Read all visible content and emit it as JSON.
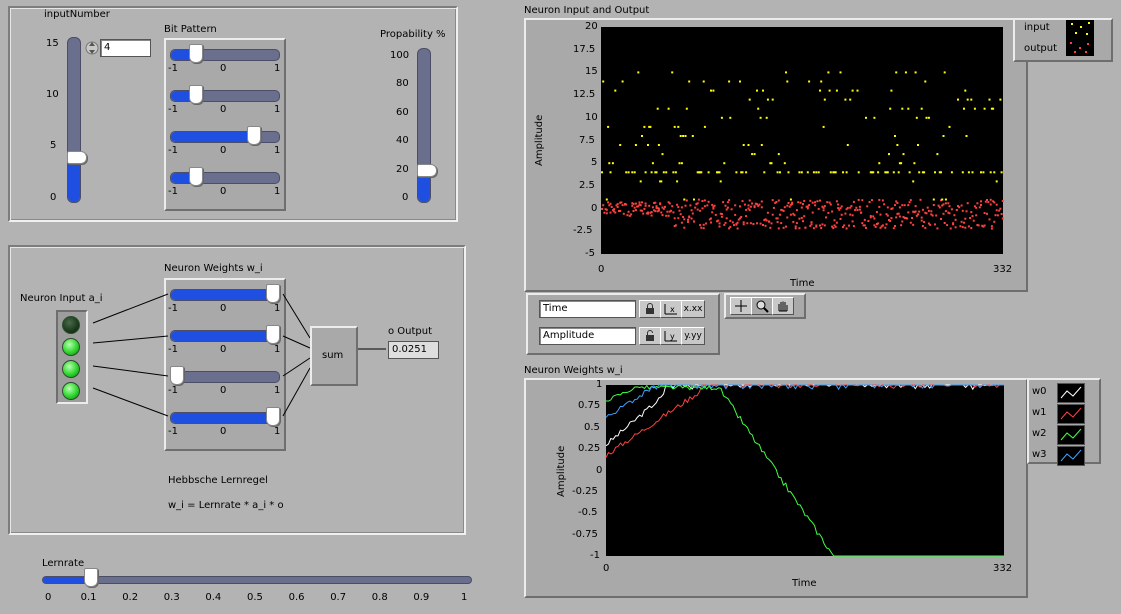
{
  "input_number": {
    "label": "inputNumber",
    "value": "4",
    "slider_value": 4,
    "scale": [
      "15",
      "10",
      "5",
      "0"
    ]
  },
  "bit_pattern": {
    "label": "Bit Pattern",
    "values": [
      -0.6,
      -0.6,
      0.6,
      -0.6
    ],
    "ticks": [
      "-1",
      "0",
      "1"
    ]
  },
  "probability": {
    "label": "Propability %",
    "value": 20,
    "scale": [
      "100",
      "80",
      "60",
      "40",
      "20",
      "0"
    ]
  },
  "network": {
    "neuron_input_label": "Neuron Input a_i",
    "leds": [
      false,
      true,
      true,
      true
    ],
    "weights_label": "Neuron Weights w_i",
    "weights": [
      1,
      1,
      -1,
      1
    ],
    "ticks": [
      "-1",
      "0",
      "1"
    ],
    "sum_label": "sum",
    "output_label": "o Output",
    "output_value": "0.0251",
    "rule_title": "Hebbsche Lernregel",
    "rule_formula": "w_i = Lernrate * a_i * o"
  },
  "lernrate": {
    "label": "Lernrate",
    "value": 0.1,
    "ticks": [
      "0",
      "0.1",
      "0.2",
      "0.3",
      "0.4",
      "0.5",
      "0.6",
      "0.7",
      "0.8",
      "0.9",
      "1"
    ]
  },
  "graph_io": {
    "title": "Neuron Input and Output",
    "ylabel": "Amplitude",
    "xlabel": "Time",
    "x_min": "0",
    "x_max": "332",
    "yticks": [
      "20",
      "17.5",
      "15",
      "12.5",
      "10",
      "7.5",
      "5",
      "2.5",
      "0",
      "-2.5",
      "-5"
    ],
    "legend": [
      {
        "name": "input",
        "color": "#ffff00"
      },
      {
        "name": "output",
        "color": "#ff4040"
      }
    ],
    "scale_x_name": "Time",
    "scale_y_name": "Amplitude",
    "x_format_btn": "x.xx",
    "y_format_btn": "y.yy"
  },
  "graph_w": {
    "title": "Neuron Weights w_i",
    "ylabel": "Amplitude",
    "xlabel": "Time",
    "x_min": "0",
    "x_max": "332",
    "yticks": [
      "1",
      "0.75",
      "0.5",
      "0.25",
      "0",
      "-0.25",
      "-0.5",
      "-0.75",
      "-1"
    ],
    "legend": [
      {
        "name": "w0",
        "color": "#ffffff"
      },
      {
        "name": "w1",
        "color": "#ff4040"
      },
      {
        "name": "w2",
        "color": "#40ff40"
      },
      {
        "name": "w3",
        "color": "#3fa0ff"
      }
    ]
  }
}
